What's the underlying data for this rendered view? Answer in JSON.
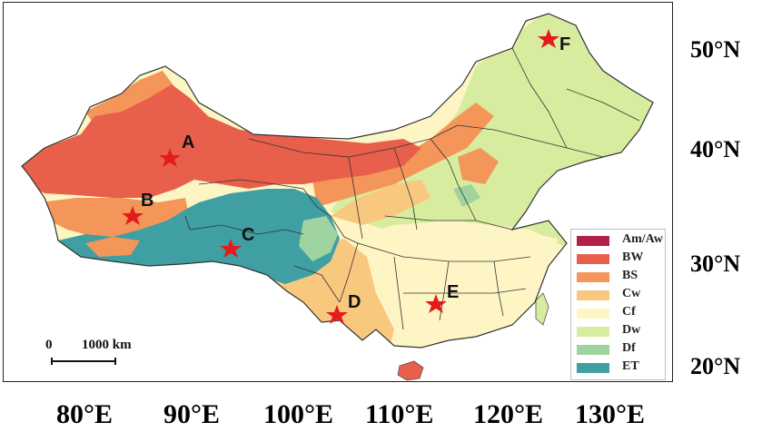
{
  "map": {
    "longitude_labels": [
      "80°E",
      "90°E",
      "100°E",
      "110°E",
      "120°E",
      "130°E"
    ],
    "latitude_labels": [
      "50°N",
      "40°N",
      "30°N",
      "20°N"
    ],
    "sites": [
      {
        "label": "A"
      },
      {
        "label": "B"
      },
      {
        "label": "C"
      },
      {
        "label": "D"
      },
      {
        "label": "E"
      },
      {
        "label": "F"
      }
    ],
    "scale_bar": {
      "zero": "0",
      "label": "1000 km"
    },
    "marker_color": "#e41b1b"
  },
  "legend": {
    "items": [
      {
        "label": "Am/Aw",
        "color": "#b3204a"
      },
      {
        "label": "BW",
        "color": "#e8604c"
      },
      {
        "label": "BS",
        "color": "#f4955a"
      },
      {
        "label": "Cw",
        "color": "#f9c87f"
      },
      {
        "label": "Cf",
        "color": "#fdf5c4"
      },
      {
        "label": "Dw",
        "color": "#d7ec9f"
      },
      {
        "label": "Df",
        "color": "#9fd3a0"
      },
      {
        "label": "ET",
        "color": "#3f9fa3"
      }
    ]
  }
}
